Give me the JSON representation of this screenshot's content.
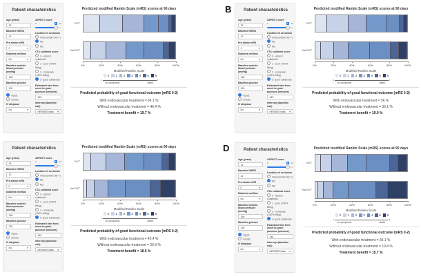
{
  "colors": {
    "mrs": [
      "#dfe5f0",
      "#c6d2e8",
      "#a5b6d8",
      "#7399cb",
      "#6b8fc2",
      "#4c6596",
      "#2f4066"
    ],
    "accent": "#2a7ae2"
  },
  "form": {
    "title": "Patient characteristics",
    "age": "Age (years)",
    "nihss": "Baseline NIHSS",
    "mrs": "Pre-stroke mRS",
    "diabetes": "Diabetes mellitus",
    "sbp": "Baseline systolic blood pressure (mmHg)",
    "glucose": "Baseline glucose",
    "unit_mg": "mg/dL",
    "unit_mmol": "mmol/L",
    "alteplase": "IV alteplase",
    "aspect": "ASPECT score",
    "aspect_min": "0",
    "aspect_max": "10",
    "occlusion": "Location of occlusion",
    "occ_options": [
      "Intracranial ICA(-T)",
      "M1",
      "M2"
    ],
    "cta": "CTA collateral score",
    "cta_options": [
      "0 - absent collaterals",
      "1 - poor (<50% filling)",
      "2 - moderate (>50% filling)",
      "3- good collaterals"
    ],
    "time": "Estimated time from onset to groin puncture (minutes)",
    "intercept": "Intercept (baseline risk)"
  },
  "chart": {
    "title": "Predicted modified Rankin Scale (mRS) scores at 90 days",
    "rows": [
      "EVT",
      "No EVT"
    ],
    "ticks": [
      "0%",
      "20%",
      "40%",
      "60%",
      "80%",
      "100%"
    ],
    "xlabel": "Modified Rankin Scale",
    "levels": [
      "0",
      "1",
      "2",
      "3",
      "4",
      "5",
      "6"
    ],
    "left_end": "no symptoms",
    "right_end": "death",
    "outcome_title": "Predicted probability of good functional outcome (mRS 0-2)"
  },
  "panels": [
    {
      "label": "",
      "inputs": {
        "age": "75",
        "nihss": "12",
        "mrs": "0",
        "diabetes": "No",
        "sbp": "130",
        "glucose": "120",
        "alteplase": "No",
        "aspect": "8",
        "time": "240",
        "intercept": "HERMES trials"
      },
      "with": "With endovascular treatment = 66.1 %",
      "without": "Without endovascular treatment = 46.4 %",
      "benefit": "Treatment benefit = 19.7 %"
    },
    {
      "label": "B",
      "inputs": {
        "age": "75",
        "nihss": "12",
        "mrs": "1",
        "diabetes": "No",
        "sbp": "130",
        "glucose": "120",
        "alteplase": "No",
        "aspect": "8",
        "time": "240",
        "intercept": "HERMES trials"
      },
      "with": "With endovascular treatment = 56 %",
      "without": "Without endovascular treatment = 36.1 %",
      "benefit": "Treatment benefit = 19.9 %"
    },
    {
      "label": "",
      "inputs": {
        "age": "75",
        "nihss": "12",
        "mrs": "0",
        "diabetes": "No",
        "sbp": "130",
        "glucose": "120",
        "alteplase": "No",
        "aspect": "8",
        "time": "240",
        "intercept": "HERMES trials"
      },
      "with": "With endovascular treatment = 45.4 %",
      "without": "Without endovascular treatment = 26.9 %",
      "benefit": "Treatment benefit = 18.5 %"
    },
    {
      "label": "D",
      "inputs": {
        "age": "75",
        "nihss": "12",
        "mrs": "0",
        "diabetes": "No",
        "sbp": "150",
        "glucose": "120",
        "alteplase": "No",
        "aspect": "8",
        "time": "240",
        "intercept": "HERMES trials"
      },
      "with": "With endovascular treatment = 35.1 %",
      "without": "Without endovascular treatment = 19.4 %",
      "benefit": "Treatment benefit = 15.7 %"
    }
  ],
  "chart_data": [
    {
      "type": "bar",
      "stacked": true,
      "orientation": "horizontal",
      "title": "Predicted modified Rankin Scale (mRS) scores at 90 days",
      "categories": [
        "EVT",
        "No EVT"
      ],
      "xlabel": "Modified Rankin Scale",
      "xlim": [
        0,
        100
      ],
      "series": [
        {
          "name": "0",
          "values": [
            18,
            8
          ]
        },
        {
          "name": "1",
          "values": [
            25,
            17
          ]
        },
        {
          "name": "2",
          "values": [
            23.1,
            21.4
          ]
        },
        {
          "name": "3",
          "values": [
            16,
            20
          ]
        },
        {
          "name": "4",
          "values": [
            11,
            21
          ]
        },
        {
          "name": "5",
          "values": [
            3,
            6
          ]
        },
        {
          "name": "6",
          "values": [
            3.9,
            6.6
          ]
        }
      ]
    },
    {
      "type": "bar",
      "stacked": true,
      "orientation": "horizontal",
      "title": "Predicted modified Rankin Scale (mRS) scores at 90 days",
      "categories": [
        "EVT",
        "No EVT"
      ],
      "xlabel": "Modified Rankin Scale",
      "xlim": [
        0,
        100
      ],
      "series": [
        {
          "name": "0",
          "values": [
            13,
            6
          ]
        },
        {
          "name": "1",
          "values": [
            23,
            14
          ]
        },
        {
          "name": "2",
          "values": [
            20,
            16.1
          ]
        },
        {
          "name": "3",
          "values": [
            22,
            23
          ]
        },
        {
          "name": "4",
          "values": [
            14,
            23
          ]
        },
        {
          "name": "5",
          "values": [
            4,
            9
          ]
        },
        {
          "name": "6",
          "values": [
            4,
            8.9
          ]
        }
      ]
    },
    {
      "type": "bar",
      "stacked": true,
      "orientation": "horizontal",
      "title": "Predicted modified Rankin Scale (mRS) scores at 90 days",
      "categories": [
        "EVT",
        "No EVT"
      ],
      "xlabel": "Modified Rankin Scale",
      "xlim": [
        0,
        100
      ],
      "series": [
        {
          "name": "0",
          "values": [
            8,
            4
          ]
        },
        {
          "name": "1",
          "values": [
            17,
            8
          ]
        },
        {
          "name": "2",
          "values": [
            20.4,
            14.9
          ]
        },
        {
          "name": "3",
          "values": [
            20.6,
            19
          ]
        },
        {
          "name": "4",
          "values": [
            20,
            27
          ]
        },
        {
          "name": "5",
          "values": [
            7,
            11
          ]
        },
        {
          "name": "6",
          "values": [
            7,
            16.1
          ]
        }
      ]
    },
    {
      "type": "bar",
      "stacked": true,
      "orientation": "horizontal",
      "title": "Predicted modified Rankin Scale (mRS) scores at 90 days",
      "categories": [
        "EVT",
        "No EVT"
      ],
      "xlabel": "Modified Rankin Scale",
      "xlim": [
        0,
        100
      ],
      "series": [
        {
          "name": "0",
          "values": [
            6,
            3
          ]
        },
        {
          "name": "1",
          "values": [
            12,
            6
          ]
        },
        {
          "name": "2",
          "values": [
            17.1,
            10.4
          ]
        },
        {
          "name": "3",
          "values": [
            20.9,
            16.6
          ]
        },
        {
          "name": "4",
          "values": [
            25,
            30
          ]
        },
        {
          "name": "5",
          "values": [
            9,
            13
          ]
        },
        {
          "name": "6",
          "values": [
            10,
            21
          ]
        }
      ]
    }
  ]
}
